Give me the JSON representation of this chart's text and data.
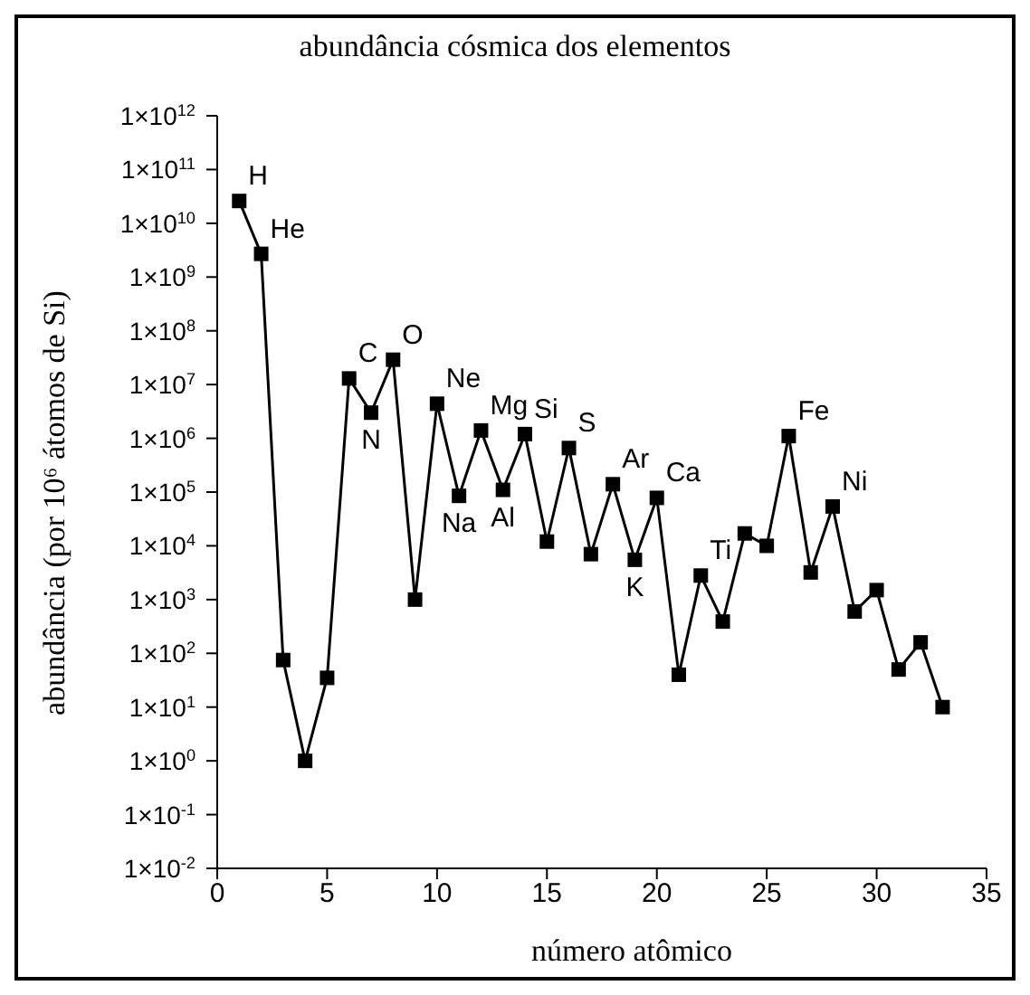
{
  "chart_data": {
    "type": "line",
    "title": "abundância cósmica dos elementos",
    "xlabel": "número atômico",
    "ylabel": "abundância (por 10⁶ átomos de Si)",
    "x": [
      1,
      2,
      3,
      4,
      5,
      6,
      7,
      8,
      9,
      10,
      11,
      12,
      13,
      14,
      15,
      16,
      17,
      18,
      19,
      20,
      21,
      22,
      23,
      24,
      25,
      26,
      27,
      28,
      29,
      30,
      31,
      32,
      33
    ],
    "series": [
      {
        "color": "#000000",
        "values": [
          26000000000,
          2700000000,
          75,
          1,
          35,
          13000000,
          3000000,
          29000000,
          1000,
          4400000,
          85000,
          1400000,
          110000,
          1200000,
          12000,
          660000,
          7000,
          140000,
          5500,
          78000,
          40,
          2800,
          390,
          17000,
          10000,
          1100000,
          3200,
          54000,
          600,
          1500,
          50,
          160,
          10
        ]
      }
    ],
    "xlim": [
      0,
      35
    ],
    "xticks": [
      0,
      5,
      10,
      15,
      20,
      25,
      30,
      35
    ],
    "log": true,
    "ylim": [
      0.01,
      1000000000000
    ],
    "yticks": [
      {
        "value": 1000000000000,
        "label": "1×10$^{12}$"
      },
      {
        "value": 100000000000,
        "label": "1×10$^{11}$"
      },
      {
        "value": 10000000000,
        "label": "1×10$^{10}$"
      },
      {
        "value": 1000000000,
        "label": "1×10$^{9}$"
      },
      {
        "value": 100000000,
        "label": "1×10$^{8}$"
      },
      {
        "value": 10000000,
        "label": "1×10$^{7}$"
      },
      {
        "value": 1000000,
        "label": "1×10$^{6}$"
      },
      {
        "value": 100000,
        "label": "1×10$^{5}$"
      },
      {
        "value": 10000,
        "label": "1×10$^{4}$"
      },
      {
        "value": 1000,
        "label": "1×10$^{3}$"
      },
      {
        "value": 100,
        "label": "1×10$^{2}$"
      },
      {
        "value": 10,
        "label": "1×10$^{1}$"
      },
      {
        "value": 1,
        "label": "1×10$^{0}$"
      },
      {
        "value": 0.1,
        "label": "1×10$^{-1}$"
      },
      {
        "value": 0.01,
        "label": "1×10$^{-2}$"
      }
    ],
    "grid": false,
    "legend": false,
    "marker": "square",
    "line_style": "solid",
    "annotations": [
      {
        "text": "H",
        "x": 1,
        "y": 26000000000
      },
      {
        "text": "He",
        "x": 2,
        "y": 2700000000
      },
      {
        "text": "C",
        "x": 6,
        "y": 13000000
      },
      {
        "text": "N",
        "x": 7,
        "y": 3000000
      },
      {
        "text": "O",
        "x": 8,
        "y": 29000000
      },
      {
        "text": "Ne",
        "x": 10,
        "y": 4400000
      },
      {
        "text": "Na",
        "x": 11,
        "y": 85000
      },
      {
        "text": "Mg",
        "x": 12,
        "y": 1400000
      },
      {
        "text": "Al",
        "x": 13,
        "y": 110000
      },
      {
        "text": "Si",
        "x": 14,
        "y": 1200000
      },
      {
        "text": "S",
        "x": 16,
        "y": 660000
      },
      {
        "text": "Ar",
        "x": 18,
        "y": 140000
      },
      {
        "text": "K",
        "x": 19,
        "y": 5500
      },
      {
        "text": "Ca",
        "x": 20,
        "y": 78000
      },
      {
        "text": "Ti",
        "x": 22,
        "y": 2800
      },
      {
        "text": "Fe",
        "x": 26,
        "y": 1100000
      },
      {
        "text": "Ni",
        "x": 28,
        "y": 54000
      }
    ]
  }
}
